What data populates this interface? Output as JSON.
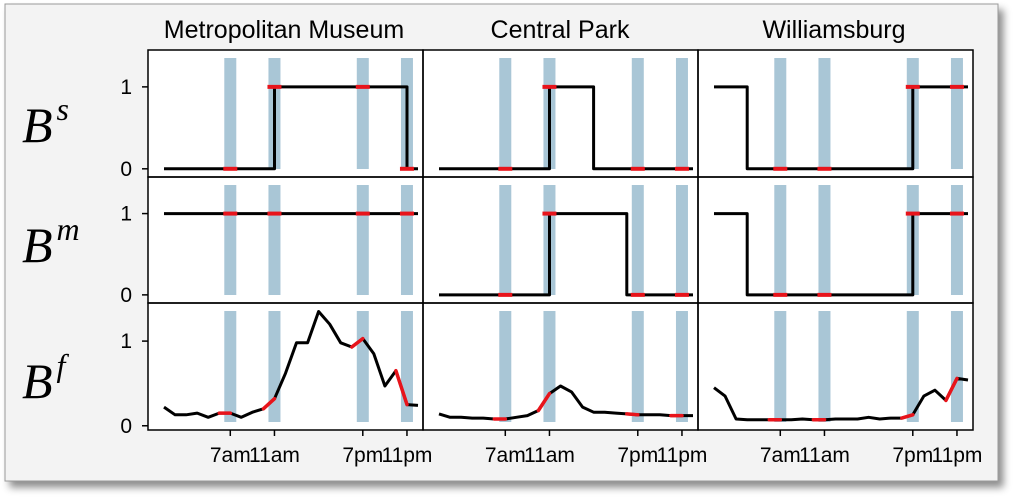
{
  "chart_data": {
    "type": "line",
    "columns": [
      "Metropolitan Museum",
      "Central Park",
      "Williamsburg"
    ],
    "rows": [
      {
        "base": "B",
        "sup": "s",
        "yticks": [
          "0",
          "1"
        ],
        "ylim": [
          -0.1,
          1.45
        ],
        "kind": "binary"
      },
      {
        "base": "B",
        "sup": "m",
        "yticks": [
          "0",
          "1"
        ],
        "ylim": [
          -0.1,
          1.45
        ],
        "kind": "binary"
      },
      {
        "base": "B",
        "sup": "f",
        "yticks": [
          "0",
          "1"
        ],
        "ylim": [
          -0.05,
          1.45
        ],
        "kind": "continuous"
      }
    ],
    "x_range": [
      0,
      24
    ],
    "xticks": [
      {
        "hour": 7,
        "label": "7am"
      },
      {
        "hour": 11,
        "label": "11am"
      },
      {
        "hour": 19,
        "label": "7pm"
      },
      {
        "hour": 23,
        "label": "11pm"
      }
    ],
    "highlight_hours": [
      7,
      11,
      19,
      23
    ],
    "highlight_color": "#a9c6d6",
    "line_color": "#000000",
    "highlight_line_color": "#e8141b",
    "panels": [
      [
        {
          "x": [
            1,
            11,
            11,
            23,
            23,
            24
          ],
          "y": [
            0,
            0,
            1,
            1,
            0,
            0
          ]
        },
        {
          "x": [
            1,
            24
          ],
          "y": [
            1,
            1
          ]
        },
        {
          "x": [
            1,
            2,
            3,
            4,
            5,
            6,
            7,
            8,
            9,
            10,
            11,
            12,
            13,
            14,
            15,
            16,
            17,
            18,
            19,
            20,
            21,
            22,
            23,
            24
          ],
          "y": [
            0.22,
            0.13,
            0.13,
            0.15,
            0.1,
            0.15,
            0.15,
            0.1,
            0.16,
            0.2,
            0.32,
            0.62,
            0.98,
            0.98,
            1.35,
            1.2,
            0.98,
            0.93,
            1.03,
            0.85,
            0.47,
            0.65,
            0.25,
            0.24
          ]
        }
      ],
      [
        {
          "x": [
            1,
            11,
            11,
            15,
            15,
            24
          ],
          "y": [
            0,
            0,
            1,
            1,
            0,
            0
          ]
        },
        {
          "x": [
            1,
            11,
            11,
            18,
            18,
            24
          ],
          "y": [
            0,
            0,
            1,
            1,
            0,
            0
          ]
        },
        {
          "x": [
            1,
            2,
            3,
            4,
            5,
            6,
            7,
            8,
            9,
            10,
            11,
            12,
            13,
            14,
            15,
            16,
            17,
            18,
            19,
            20,
            21,
            22,
            23,
            24
          ],
          "y": [
            0.14,
            0.1,
            0.1,
            0.09,
            0.09,
            0.08,
            0.08,
            0.1,
            0.12,
            0.18,
            0.38,
            0.47,
            0.4,
            0.22,
            0.16,
            0.16,
            0.15,
            0.14,
            0.13,
            0.13,
            0.13,
            0.12,
            0.12,
            0.12
          ]
        }
      ],
      [
        {
          "x": [
            1,
            4,
            4,
            19,
            19,
            24
          ],
          "y": [
            1,
            1,
            0,
            0,
            1,
            1
          ]
        },
        {
          "x": [
            1,
            4,
            4,
            19,
            19,
            24
          ],
          "y": [
            1,
            1,
            0,
            0,
            1,
            1
          ]
        },
        {
          "x": [
            1,
            2,
            3,
            4,
            5,
            6,
            7,
            8,
            9,
            10,
            11,
            12,
            13,
            14,
            15,
            16,
            17,
            18,
            19,
            20,
            21,
            22,
            23,
            24
          ],
          "y": [
            0.45,
            0.35,
            0.08,
            0.07,
            0.07,
            0.07,
            0.07,
            0.07,
            0.08,
            0.07,
            0.07,
            0.08,
            0.08,
            0.08,
            0.1,
            0.08,
            0.09,
            0.09,
            0.13,
            0.35,
            0.42,
            0.3,
            0.56,
            0.54
          ]
        }
      ]
    ]
  }
}
